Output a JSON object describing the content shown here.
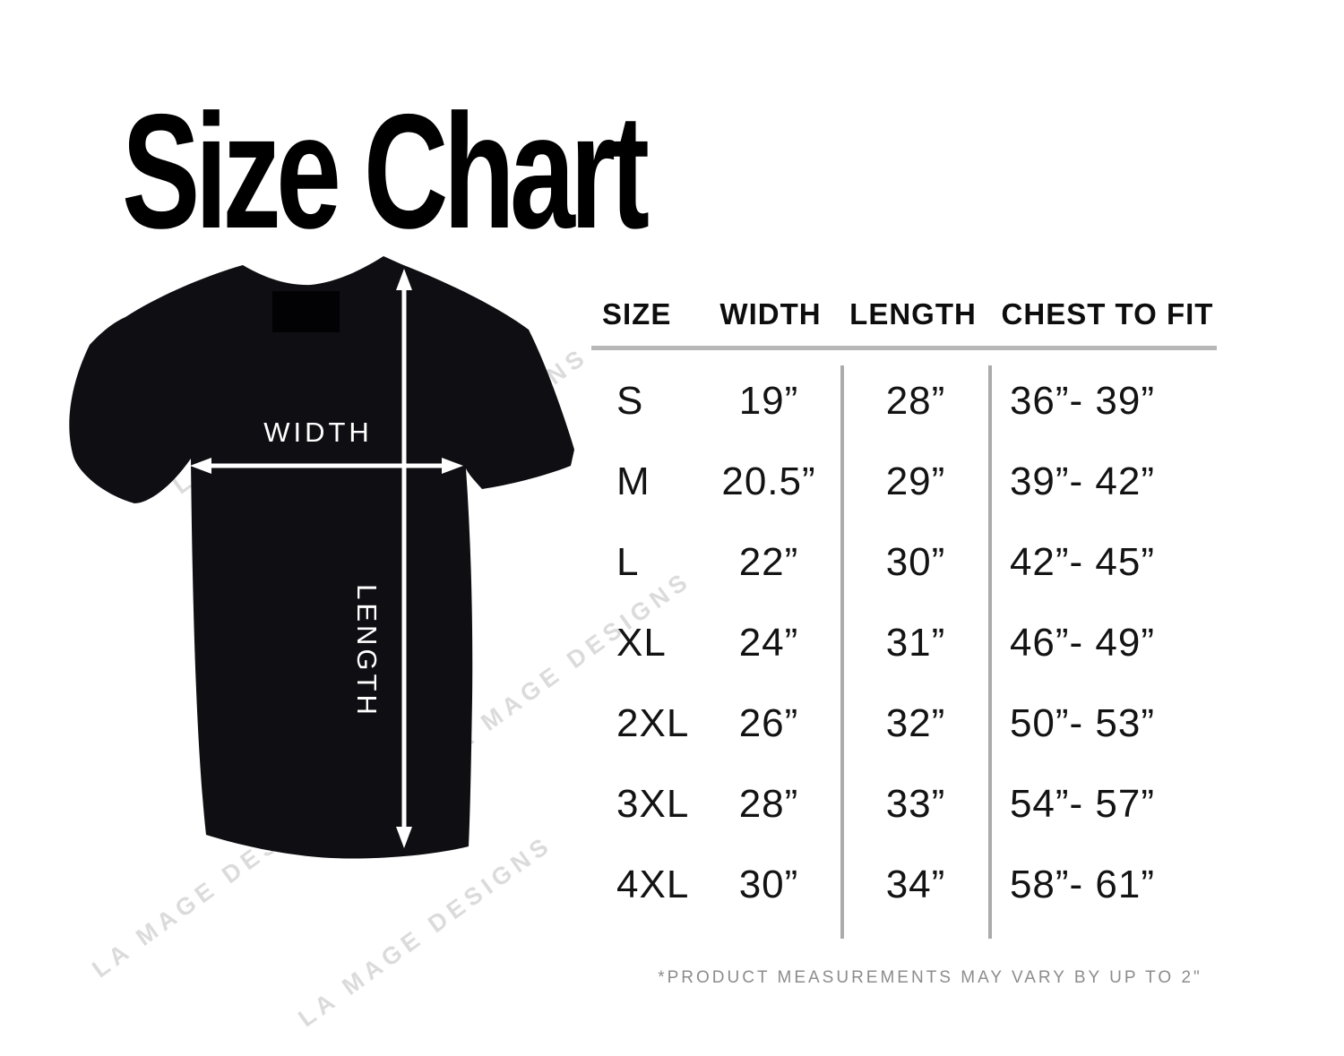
{
  "chart_data": {
    "type": "table",
    "title": "Size Chart",
    "columns": [
      "SIZE",
      "WIDTH",
      "LENGTH",
      "CHEST TO FIT"
    ],
    "rows": [
      [
        "S",
        "19”",
        "28”",
        "36”- 39”"
      ],
      [
        "M",
        "20.5”",
        "29”",
        "39”- 42”"
      ],
      [
        "L",
        "22”",
        "30”",
        "42”- 45”"
      ],
      [
        "XL",
        "24”",
        "31”",
        "46”- 49”"
      ],
      [
        "2XL",
        "26”",
        "32”",
        "50”- 53”"
      ],
      [
        "3XL",
        "28”",
        "33”",
        "54”- 57”"
      ],
      [
        "4XL",
        "30”",
        "34”",
        "58”- 61”"
      ]
    ],
    "note": "*PRODUCT MEASUREMENTS MAY VARY BY UP TO 2\"",
    "legend_position": "none",
    "grid": "column dividers only"
  },
  "diagram": {
    "width_label": "WIDTH",
    "length_label": "LENGTH"
  },
  "watermark": {
    "text": "LA MAGE DESIGNS"
  },
  "colors": {
    "shirt": "#0e0e13",
    "label_tag": "#020205",
    "arrow": "#ffffff",
    "rule": "#b7b7b7",
    "divider": "#ababab",
    "ink": "#131313",
    "note": "#8c8c8c",
    "title": "#000000"
  }
}
